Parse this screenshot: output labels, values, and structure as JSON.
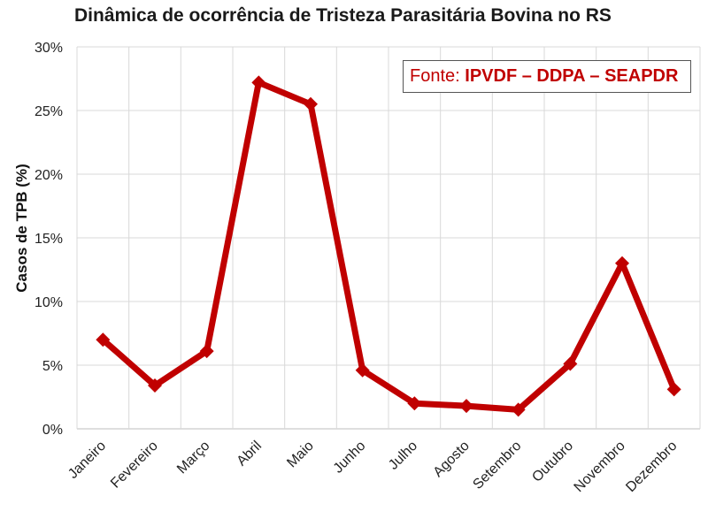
{
  "chart_data": {
    "type": "line",
    "title": "Dinâmica de ocorrência de Tristeza Parasitária Bovina no RS",
    "xlabel": "",
    "ylabel": "Casos de TPB (%)",
    "categories": [
      "Janeiro",
      "Fevereiro",
      "Março",
      "Abril",
      "Maio",
      "Junho",
      "Julho",
      "Agosto",
      "Setembro",
      "Outubro",
      "Novembro",
      "Dezembro"
    ],
    "values": [
      7.0,
      3.4,
      6.1,
      27.2,
      25.5,
      4.6,
      2.0,
      1.8,
      1.5,
      5.1,
      13.0,
      3.1
    ],
    "ylim": [
      0,
      30
    ],
    "yticks": [
      0,
      5,
      10,
      15,
      20,
      25,
      30
    ],
    "ytick_labels": [
      "0%",
      "5%",
      "10%",
      "15%",
      "20%",
      "25%",
      "30%"
    ],
    "grid": true,
    "line_color": "#c00000",
    "annotation": {
      "prefix": "Fonte: ",
      "source": "IPVDF – DDPA – SEAPDR",
      "color": "#c00000"
    }
  }
}
